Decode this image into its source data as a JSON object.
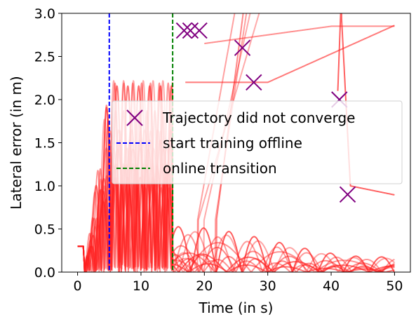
{
  "chart_data": {
    "type": "line",
    "xlabel": "Time (in s)",
    "ylabel": "Lateral error (in m)",
    "xlim": [
      -2.5,
      52.5
    ],
    "ylim": [
      0,
      3.0
    ],
    "xticks": [
      0,
      10,
      20,
      30,
      40,
      50
    ],
    "yticks": [
      0.0,
      0.5,
      1.0,
      1.5,
      2.0,
      2.5,
      3.0
    ],
    "xtick_labels": [
      "0",
      "10",
      "20",
      "30",
      "40",
      "50"
    ],
    "ytick_labels": [
      "0.0",
      "0.5",
      "1.0",
      "1.5",
      "2.0",
      "2.5",
      "3.0"
    ],
    "grid": false,
    "legend_position": "center-right",
    "colors": {
      "trajectory": "#ff2020",
      "marker": "#800080",
      "offline": "#0000ff",
      "online": "#008000"
    },
    "vlines": [
      {
        "x": 5,
        "color": "#0000ff",
        "style": "dashed"
      },
      {
        "x": 15,
        "color": "#008000",
        "style": "dashed"
      }
    ],
    "markers": {
      "type": "x",
      "color": "#800080",
      "points": [
        {
          "x": 16.8,
          "y": 2.8
        },
        {
          "x": 17.8,
          "y": 2.8
        },
        {
          "x": 19.2,
          "y": 2.8
        },
        {
          "x": 26.0,
          "y": 2.6
        },
        {
          "x": 27.8,
          "y": 2.2
        },
        {
          "x": 41.3,
          "y": 2.0
        },
        {
          "x": 42.6,
          "y": 0.9
        }
      ]
    },
    "legend": [
      {
        "label": "Trajectory did not converge",
        "kind": "marker",
        "color": "#800080"
      },
      {
        "label": "start training offline",
        "kind": "line",
        "color": "#0000ff"
      },
      {
        "label": "online transition",
        "kind": "line",
        "color": "#008000"
      }
    ]
  }
}
